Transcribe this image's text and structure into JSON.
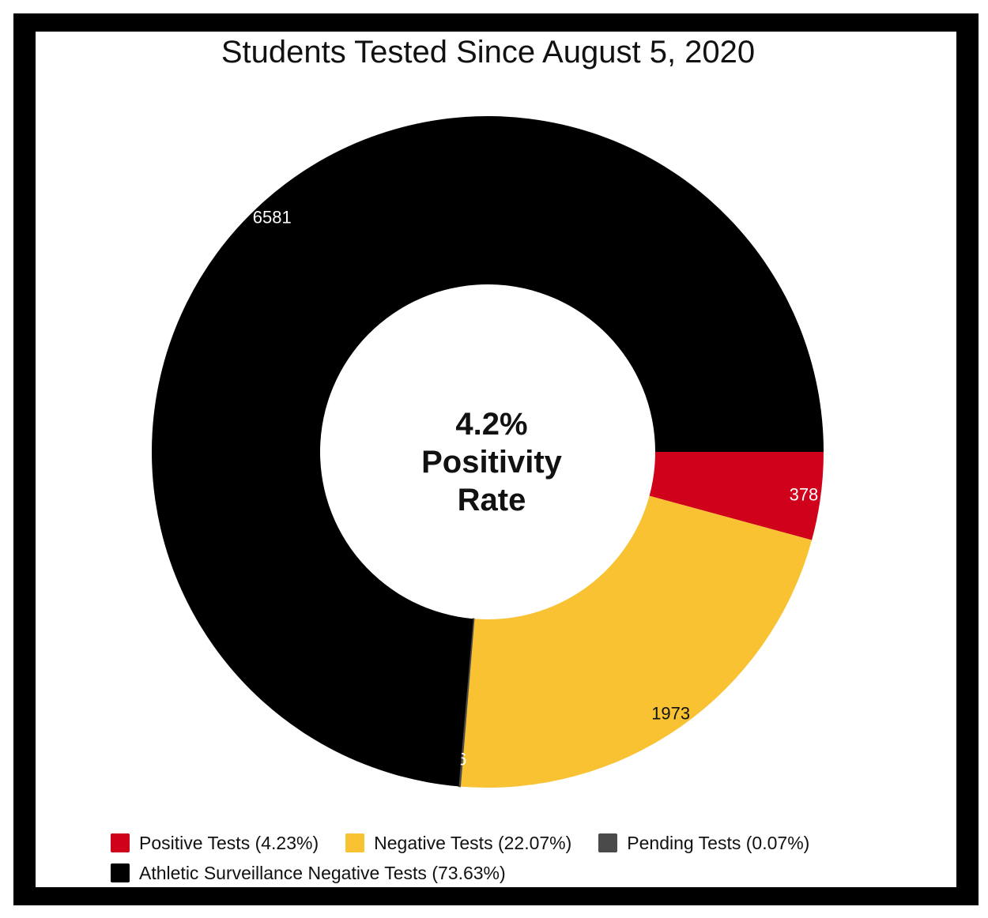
{
  "chart_data": {
    "type": "pie",
    "title": "Students Tested Since August 5, 2020",
    "center_label": [
      "4.2%",
      "Positivity",
      "Rate"
    ],
    "slices": [
      {
        "label": "Positive Tests",
        "value": 378,
        "percent_label": "(4.23%)",
        "color": "#d0021b",
        "label_color": "#ffffff"
      },
      {
        "label": "Negative Tests",
        "value": 1973,
        "percent_label": "(22.07%)",
        "color": "#f8c232",
        "label_color": "#111111"
      },
      {
        "label": "Pending Tests",
        "value": 6,
        "percent_label": "(0.07%)",
        "color": "#4a4a4a",
        "label_color": "#ffffff"
      },
      {
        "label": "Athletic Surveillance Negative Tests",
        "value": 6581,
        "percent_label": "(73.63%)",
        "color": "#000000",
        "label_color": "#ffffff"
      }
    ],
    "legend_position": "bottom"
  }
}
